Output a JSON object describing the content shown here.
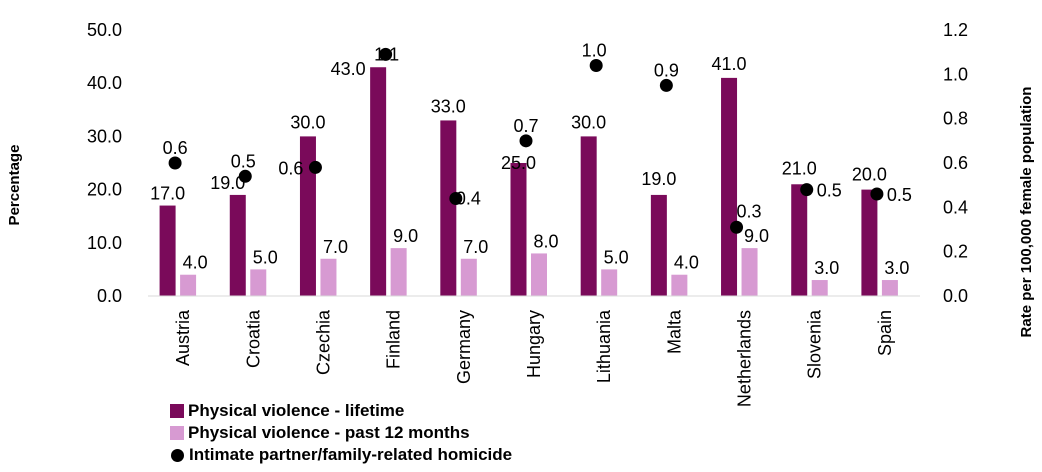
{
  "chart_data": {
    "type": "bar",
    "categories": [
      "Austria",
      "Croatia",
      "Czechia",
      "Finland",
      "Germany",
      "Hungary",
      "Lithuania",
      "Malta",
      "Netherlands",
      "Slovenia",
      "Spain"
    ],
    "series": [
      {
        "name": "Physical violence - lifetime",
        "kind": "bar",
        "axis": "left",
        "color": "#7a0a5a",
        "values": [
          17.0,
          19.0,
          30.0,
          43.0,
          33.0,
          25.0,
          30.0,
          19.0,
          41.0,
          21.0,
          20.0
        ],
        "labels": [
          "17.0",
          "19.0",
          "30.0",
          "43.0",
          "33.0",
          "25.0",
          "30.0",
          "19.0",
          "41.0",
          "21.0",
          "20.0"
        ]
      },
      {
        "name": "Physical violence - past 12 months",
        "kind": "bar",
        "axis": "left",
        "color": "#d79ad2",
        "values": [
          4.0,
          5.0,
          7.0,
          9.0,
          7.0,
          8.0,
          5.0,
          4.0,
          9.0,
          3.0,
          3.0
        ],
        "labels": [
          "4.0",
          "5.0",
          "7.0",
          "9.0",
          "7.0",
          "8.0",
          "5.0",
          "4.0",
          "9.0",
          "3.0",
          "3.0"
        ]
      },
      {
        "name": "Intimate partner/family-related homicide",
        "kind": "scatter",
        "axis": "right",
        "color": "#000000",
        "values": [
          0.6,
          0.54,
          0.58,
          1.09,
          0.44,
          0.7,
          1.04,
          0.95,
          0.31,
          0.48,
          0.46
        ],
        "labels": [
          "0.6",
          "0.5",
          "0.6",
          "1.1",
          "0.4",
          "0.7",
          "1.0",
          "0.9",
          "0.3",
          "0.5",
          "0.5"
        ]
      }
    ],
    "ylabel": "Percentage",
    "y2label": "Rate per 100,000 female population",
    "ylim": [
      0,
      50
    ],
    "y2lim": [
      0,
      1.2
    ],
    "yticks": [
      "0.0",
      "10.0",
      "20.0",
      "30.0",
      "40.0",
      "50.0"
    ],
    "y2ticks": [
      "0.0",
      "0.2",
      "0.4",
      "0.6",
      "0.8",
      "1.0",
      "1.2"
    ],
    "grid": false,
    "legend_position": "bottom-left"
  }
}
